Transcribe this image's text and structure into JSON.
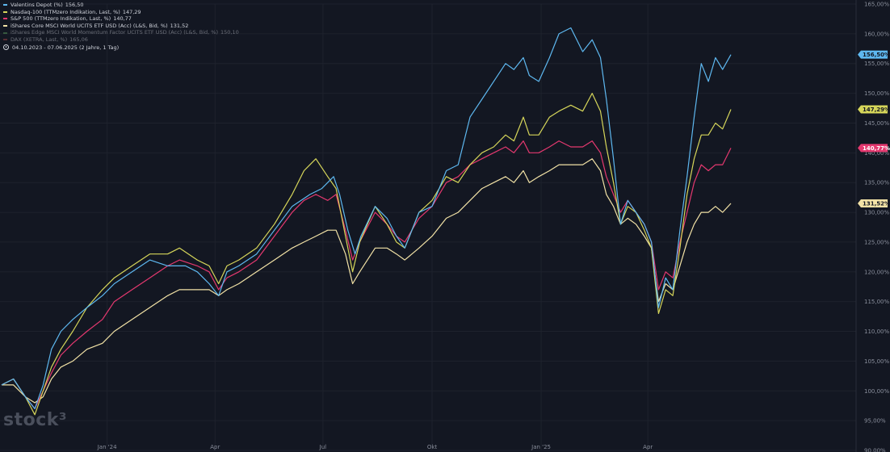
{
  "legend": [
    {
      "label": "Valentins Depot (%)",
      "value": "156,50",
      "color": "#5eb8f0",
      "dim": false
    },
    {
      "label": "Nasdaq-100 (TTMzero Indikation, Last, %)",
      "value": "147,29",
      "color": "#d6d65a",
      "dim": false
    },
    {
      "label": "S&P 500 (TTMzero Indikation, Last, %)",
      "value": "140,77",
      "color": "#e4386f",
      "dim": false
    },
    {
      "label": "iShares Core MSCI World UCITS ETF USD (Acc) (L&S, Bid, %)",
      "value": "131,52",
      "color": "#f2e2a6",
      "dim": false
    },
    {
      "label": "iShares Edge MSCI World Momentum Factor UCITS ETF USD (Acc) (L&S, Bid, %)",
      "value": "150,10",
      "color": "#5fa35f",
      "dim": true
    },
    {
      "label": "DAX (XETRA, Last, %)",
      "value": "165,06",
      "color": "#b04848",
      "dim": true
    }
  ],
  "date_range": "04.10.2023 - 07.06.2025   (2 Jahre, 1 Tag)",
  "logo": "stock³",
  "chart_data": {
    "type": "line",
    "y_range": [
      90,
      165
    ],
    "y_ticks": [
      {
        "v": 165,
        "label": "165,00%"
      },
      {
        "v": 160,
        "label": "160,00%"
      },
      {
        "v": 155,
        "label": "155,00%"
      },
      {
        "v": 150,
        "label": "150,00%"
      },
      {
        "v": 145,
        "label": "145,00%"
      },
      {
        "v": 140,
        "label": "140,00%"
      },
      {
        "v": 135,
        "label": "135,00%"
      },
      {
        "v": 130,
        "label": "130,00%"
      },
      {
        "v": 125,
        "label": "125,00%"
      },
      {
        "v": 120,
        "label": "120,00%"
      },
      {
        "v": 115,
        "label": "115,00%"
      },
      {
        "v": 110,
        "label": "110,00%"
      },
      {
        "v": 105,
        "label": "105,00%"
      },
      {
        "v": 100,
        "label": "100,00%"
      },
      {
        "v": 95,
        "label": "95,00%"
      },
      {
        "v": 90,
        "label": "90,00%"
      }
    ],
    "x_range": [
      0,
      615
    ],
    "x_ticks": [
      {
        "d": 89,
        "label": "Jan '24"
      },
      {
        "d": 180,
        "label": "Apr"
      },
      {
        "d": 271,
        "label": "Jul"
      },
      {
        "d": 363,
        "label": "Okt"
      },
      {
        "d": 455,
        "label": "Jan '25"
      },
      {
        "d": 545,
        "label": "Apr"
      }
    ],
    "series": [
      {
        "name": "Valentins Depot (%)",
        "color": "#5eb8f0",
        "last_label": "156,50%",
        "points": [
          [
            0,
            101
          ],
          [
            10,
            102
          ],
          [
            20,
            99
          ],
          [
            28,
            97
          ],
          [
            35,
            101
          ],
          [
            42,
            107
          ],
          [
            50,
            110
          ],
          [
            60,
            112
          ],
          [
            72,
            114
          ],
          [
            85,
            116
          ],
          [
            95,
            118
          ],
          [
            110,
            120
          ],
          [
            125,
            122
          ],
          [
            140,
            121
          ],
          [
            155,
            121
          ],
          [
            165,
            120
          ],
          [
            175,
            118
          ],
          [
            183,
            116
          ],
          [
            190,
            120
          ],
          [
            200,
            121
          ],
          [
            215,
            123
          ],
          [
            230,
            127
          ],
          [
            245,
            131
          ],
          [
            260,
            133
          ],
          [
            270,
            134
          ],
          [
            280,
            136
          ],
          [
            285,
            133
          ],
          [
            292,
            127
          ],
          [
            298,
            123
          ],
          [
            303,
            126
          ],
          [
            315,
            131
          ],
          [
            325,
            129
          ],
          [
            333,
            126
          ],
          [
            340,
            124
          ],
          [
            352,
            130
          ],
          [
            363,
            131
          ],
          [
            375,
            137
          ],
          [
            385,
            138
          ],
          [
            395,
            146
          ],
          [
            405,
            149
          ],
          [
            415,
            152
          ],
          [
            425,
            155
          ],
          [
            432,
            154
          ],
          [
            440,
            156
          ],
          [
            445,
            153
          ],
          [
            453,
            152
          ],
          [
            462,
            156
          ],
          [
            470,
            160
          ],
          [
            480,
            161
          ],
          [
            490,
            157
          ],
          [
            498,
            159
          ],
          [
            505,
            156
          ],
          [
            510,
            149
          ],
          [
            516,
            139
          ],
          [
            522,
            128
          ],
          [
            528,
            132
          ],
          [
            535,
            130
          ],
          [
            542,
            128
          ],
          [
            548,
            125
          ],
          [
            554,
            114
          ],
          [
            560,
            119
          ],
          [
            566,
            117
          ],
          [
            572,
            127
          ],
          [
            578,
            136
          ],
          [
            584,
            146
          ],
          [
            590,
            155
          ],
          [
            596,
            152
          ],
          [
            602,
            156
          ],
          [
            608,
            154
          ],
          [
            615,
            156.5
          ]
        ]
      },
      {
        "name": "Nasdaq-100 (TTMzero Indikation, Last, %)",
        "color": "#d6d65a",
        "last_label": "147,29%",
        "points": [
          [
            0,
            101
          ],
          [
            10,
            102
          ],
          [
            20,
            99
          ],
          [
            28,
            96
          ],
          [
            35,
            100
          ],
          [
            42,
            104
          ],
          [
            50,
            107
          ],
          [
            60,
            110
          ],
          [
            72,
            114
          ],
          [
            85,
            117
          ],
          [
            95,
            119
          ],
          [
            110,
            121
          ],
          [
            125,
            123
          ],
          [
            140,
            123
          ],
          [
            150,
            124
          ],
          [
            165,
            122
          ],
          [
            175,
            121
          ],
          [
            183,
            118
          ],
          [
            190,
            121
          ],
          [
            200,
            122
          ],
          [
            215,
            124
          ],
          [
            230,
            128
          ],
          [
            245,
            133
          ],
          [
            255,
            137
          ],
          [
            265,
            139
          ],
          [
            275,
            136
          ],
          [
            282,
            134
          ],
          [
            290,
            126
          ],
          [
            296,
            120
          ],
          [
            302,
            125
          ],
          [
            315,
            131
          ],
          [
            325,
            128
          ],
          [
            333,
            125
          ],
          [
            340,
            124
          ],
          [
            352,
            130
          ],
          [
            363,
            132
          ],
          [
            375,
            136
          ],
          [
            385,
            135
          ],
          [
            395,
            138
          ],
          [
            405,
            140
          ],
          [
            415,
            141
          ],
          [
            425,
            143
          ],
          [
            432,
            142
          ],
          [
            440,
            146
          ],
          [
            445,
            143
          ],
          [
            453,
            143
          ],
          [
            462,
            146
          ],
          [
            470,
            147
          ],
          [
            480,
            148
          ],
          [
            490,
            147
          ],
          [
            498,
            150
          ],
          [
            505,
            147
          ],
          [
            510,
            141
          ],
          [
            516,
            135
          ],
          [
            522,
            128
          ],
          [
            528,
            131
          ],
          [
            535,
            130
          ],
          [
            542,
            127
          ],
          [
            548,
            124
          ],
          [
            554,
            113
          ],
          [
            560,
            117
          ],
          [
            566,
            116
          ],
          [
            572,
            124
          ],
          [
            578,
            133
          ],
          [
            584,
            139
          ],
          [
            590,
            143
          ],
          [
            596,
            143
          ],
          [
            602,
            145
          ],
          [
            608,
            144
          ],
          [
            615,
            147.3
          ]
        ]
      },
      {
        "name": "S&P 500 (TTMzero Indikation, Last, %)",
        "color": "#e4386f",
        "last_label": "140,77%",
        "points": [
          [
            0,
            101
          ],
          [
            10,
            102
          ],
          [
            20,
            99
          ],
          [
            28,
            97
          ],
          [
            35,
            100
          ],
          [
            42,
            103
          ],
          [
            50,
            106
          ],
          [
            60,
            108
          ],
          [
            72,
            110
          ],
          [
            85,
            112
          ],
          [
            95,
            115
          ],
          [
            110,
            117
          ],
          [
            125,
            119
          ],
          [
            140,
            121
          ],
          [
            150,
            122
          ],
          [
            165,
            121
          ],
          [
            175,
            120
          ],
          [
            183,
            117
          ],
          [
            190,
            119
          ],
          [
            200,
            120
          ],
          [
            215,
            122
          ],
          [
            230,
            126
          ],
          [
            245,
            130
          ],
          [
            255,
            132
          ],
          [
            265,
            133
          ],
          [
            275,
            132
          ],
          [
            282,
            133
          ],
          [
            290,
            127
          ],
          [
            296,
            122
          ],
          [
            302,
            125
          ],
          [
            315,
            130
          ],
          [
            325,
            128
          ],
          [
            333,
            126
          ],
          [
            340,
            125
          ],
          [
            352,
            129
          ],
          [
            363,
            131
          ],
          [
            375,
            135
          ],
          [
            385,
            136
          ],
          [
            395,
            138
          ],
          [
            405,
            139
          ],
          [
            415,
            140
          ],
          [
            425,
            141
          ],
          [
            432,
            140
          ],
          [
            440,
            142
          ],
          [
            445,
            140
          ],
          [
            453,
            140
          ],
          [
            462,
            141
          ],
          [
            470,
            142
          ],
          [
            480,
            141
          ],
          [
            490,
            141
          ],
          [
            498,
            142
          ],
          [
            505,
            140
          ],
          [
            510,
            136
          ],
          [
            516,
            133
          ],
          [
            522,
            130
          ],
          [
            528,
            132
          ],
          [
            535,
            130
          ],
          [
            542,
            128
          ],
          [
            548,
            125
          ],
          [
            554,
            117
          ],
          [
            560,
            120
          ],
          [
            566,
            119
          ],
          [
            572,
            125
          ],
          [
            578,
            130
          ],
          [
            584,
            135
          ],
          [
            590,
            138
          ],
          [
            596,
            137
          ],
          [
            602,
            138
          ],
          [
            608,
            138
          ],
          [
            615,
            140.8
          ]
        ]
      },
      {
        "name": "iShares Core MSCI World UCITS ETF USD (Acc) (L&S, Bid, %)",
        "color": "#f2e2a6",
        "last_label": "131,52%",
        "points": [
          [
            0,
            101
          ],
          [
            10,
            101
          ],
          [
            20,
            99
          ],
          [
            28,
            98
          ],
          [
            35,
            99
          ],
          [
            42,
            102
          ],
          [
            50,
            104
          ],
          [
            60,
            105
          ],
          [
            72,
            107
          ],
          [
            85,
            108
          ],
          [
            95,
            110
          ],
          [
            110,
            112
          ],
          [
            125,
            114
          ],
          [
            140,
            116
          ],
          [
            150,
            117
          ],
          [
            165,
            117
          ],
          [
            175,
            117
          ],
          [
            183,
            116
          ],
          [
            190,
            117
          ],
          [
            200,
            118
          ],
          [
            215,
            120
          ],
          [
            230,
            122
          ],
          [
            245,
            124
          ],
          [
            255,
            125
          ],
          [
            265,
            126
          ],
          [
            275,
            127
          ],
          [
            282,
            127
          ],
          [
            290,
            123
          ],
          [
            296,
            118
          ],
          [
            302,
            120
          ],
          [
            315,
            124
          ],
          [
            325,
            124
          ],
          [
            333,
            123
          ],
          [
            340,
            122
          ],
          [
            352,
            124
          ],
          [
            363,
            126
          ],
          [
            375,
            129
          ],
          [
            385,
            130
          ],
          [
            395,
            132
          ],
          [
            405,
            134
          ],
          [
            415,
            135
          ],
          [
            425,
            136
          ],
          [
            432,
            135
          ],
          [
            440,
            137
          ],
          [
            445,
            135
          ],
          [
            453,
            136
          ],
          [
            462,
            137
          ],
          [
            470,
            138
          ],
          [
            480,
            138
          ],
          [
            490,
            138
          ],
          [
            498,
            139
          ],
          [
            505,
            137
          ],
          [
            510,
            133
          ],
          [
            516,
            131
          ],
          [
            522,
            128
          ],
          [
            528,
            129
          ],
          [
            535,
            128
          ],
          [
            542,
            126
          ],
          [
            548,
            124
          ],
          [
            554,
            115
          ],
          [
            560,
            118
          ],
          [
            566,
            117
          ],
          [
            572,
            121
          ],
          [
            578,
            125
          ],
          [
            584,
            128
          ],
          [
            590,
            130
          ],
          [
            596,
            130
          ],
          [
            602,
            131
          ],
          [
            608,
            130
          ],
          [
            615,
            131.5
          ]
        ]
      }
    ]
  }
}
